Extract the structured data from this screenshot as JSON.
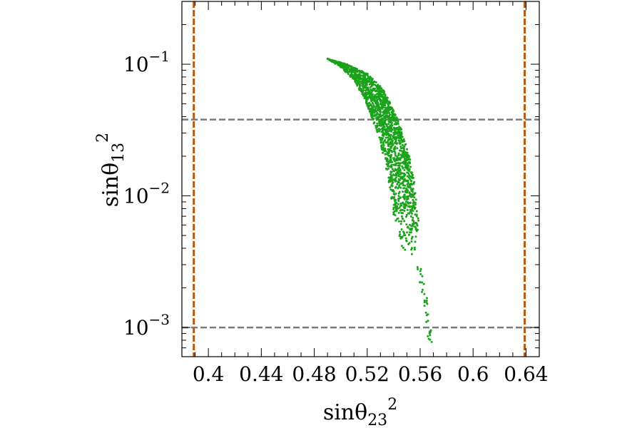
{
  "chart_data": {
    "type": "scatter",
    "title": "",
    "xlabel": "sinθ23²",
    "ylabel": "sinθ13²",
    "x_scale": "linear",
    "y_scale": "log",
    "xlim": [
      0.38,
      0.65
    ],
    "ylim": [
      0.0006,
      0.3
    ],
    "x_ticks": [
      {
        "value": 0.4,
        "label": "0.4"
      },
      {
        "value": 0.44,
        "label": "0.44"
      },
      {
        "value": 0.48,
        "label": "0.48"
      },
      {
        "value": 0.52,
        "label": "0.52"
      },
      {
        "value": 0.56,
        "label": "0.56"
      },
      {
        "value": 0.6,
        "label": "0.6"
      },
      {
        "value": 0.64,
        "label": "0.64"
      }
    ],
    "y_ticks": [
      {
        "value": 0.1,
        "base": "10",
        "exponent": "−1"
      },
      {
        "value": 0.01,
        "base": "10",
        "exponent": "−2"
      },
      {
        "value": 0.001,
        "base": "10",
        "exponent": "−3"
      }
    ],
    "grid": false,
    "legend": "none",
    "reference_lines": {
      "vertical": [
        0.389,
        0.639
      ],
      "vertical_color": "#b8580f",
      "horizontal": [
        0.038,
        0.001
      ],
      "horizontal_color": "#7a7a7a"
    },
    "scatter_band": {
      "color": "#1aa31a",
      "edge_inner": [
        [
          0.49,
          0.11
        ],
        [
          0.5,
          0.095
        ],
        [
          0.51,
          0.075
        ],
        [
          0.518,
          0.055
        ],
        [
          0.524,
          0.038
        ],
        [
          0.53,
          0.025
        ],
        [
          0.535,
          0.015
        ],
        [
          0.538,
          0.01
        ],
        [
          0.541,
          0.006
        ],
        [
          0.545,
          0.0045
        ],
        [
          0.548,
          0.0035
        ]
      ],
      "edge_outer": [
        [
          0.49,
          0.11
        ],
        [
          0.505,
          0.1
        ],
        [
          0.52,
          0.085
        ],
        [
          0.532,
          0.065
        ],
        [
          0.54,
          0.045
        ],
        [
          0.547,
          0.03
        ],
        [
          0.552,
          0.02
        ],
        [
          0.556,
          0.012
        ],
        [
          0.558,
          0.008
        ],
        [
          0.56,
          0.005
        ],
        [
          0.561,
          0.0035
        ]
      ],
      "tail": [
        [
          0.558,
          0.0032
        ],
        [
          0.56,
          0.0025
        ],
        [
          0.562,
          0.002
        ],
        [
          0.564,
          0.0016
        ],
        [
          0.565,
          0.0013
        ],
        [
          0.566,
          0.0011
        ],
        [
          0.567,
          0.0009
        ],
        [
          0.568,
          0.00075
        ]
      ]
    }
  }
}
